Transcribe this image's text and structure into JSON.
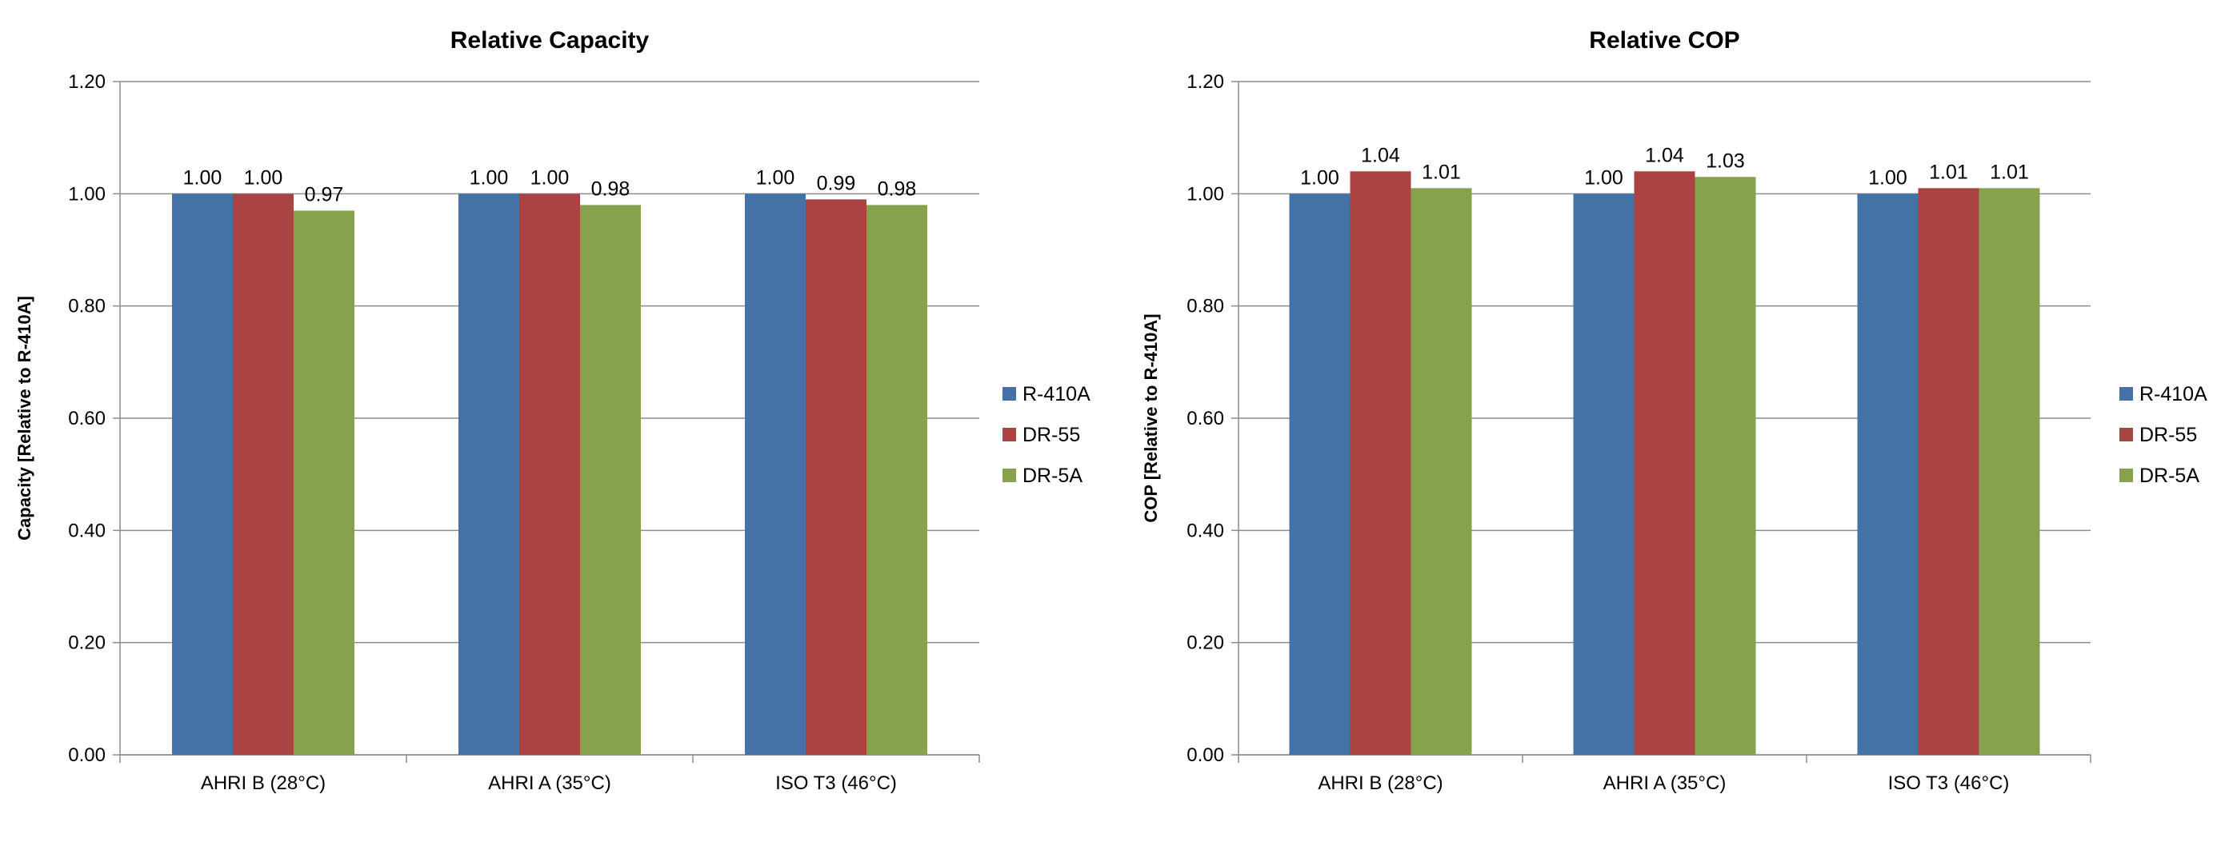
{
  "chart_data": [
    {
      "type": "bar",
      "title": "Relative Capacity",
      "ylabel": "Capacity [Relative to R-410A]",
      "xlabel": "",
      "categories": [
        "AHRI B (28°C)",
        "AHRI A (35°C)",
        "ISO T3 (46°C)"
      ],
      "ylim": [
        0,
        1.2
      ],
      "yticks": [
        "0.00",
        "0.20",
        "0.40",
        "0.60",
        "0.80",
        "1.00",
        "1.20"
      ],
      "grid": true,
      "legend_position": "right",
      "series": [
        {
          "name": "R-410A",
          "color": "#4472a8",
          "values": [
            1.0,
            1.0,
            1.0
          ],
          "labels": [
            "1.00",
            "1.00",
            "1.00"
          ]
        },
        {
          "name": "DR-55",
          "color": "#aa4442",
          "values": [
            1.0,
            1.0,
            0.99
          ],
          "labels": [
            "1.00",
            "1.00",
            "0.99"
          ]
        },
        {
          "name": "DR-5A",
          "color": "#87a24d",
          "values": [
            0.97,
            0.98,
            0.98
          ],
          "labels": [
            "0.97",
            "0.98",
            "0.98"
          ]
        }
      ]
    },
    {
      "type": "bar",
      "title": "Relative COP",
      "ylabel": "COP [Relative to R-410A]",
      "xlabel": "",
      "categories": [
        "AHRI B (28°C)",
        "AHRI A (35°C)",
        "ISO T3 (46°C)"
      ],
      "ylim": [
        0,
        1.2
      ],
      "yticks": [
        "0.00",
        "0.20",
        "0.40",
        "0.60",
        "0.80",
        "1.00",
        "1.20"
      ],
      "grid": true,
      "legend_position": "right",
      "series": [
        {
          "name": "R-410A",
          "color": "#4472a8",
          "values": [
            1.0,
            1.0,
            1.0
          ],
          "labels": [
            "1.00",
            "1.00",
            "1.00"
          ]
        },
        {
          "name": "DR-55",
          "color": "#aa4442",
          "values": [
            1.04,
            1.04,
            1.01
          ],
          "labels": [
            "1.04",
            "1.04",
            "1.01"
          ]
        },
        {
          "name": "DR-5A",
          "color": "#87a24d",
          "values": [
            1.01,
            1.03,
            1.01
          ],
          "labels": [
            "1.01",
            "1.03",
            "1.01"
          ]
        }
      ]
    }
  ]
}
